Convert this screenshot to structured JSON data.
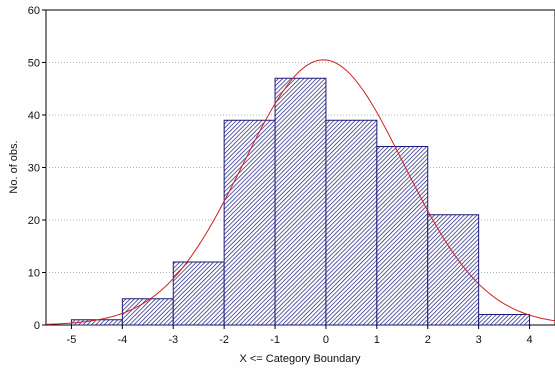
{
  "chart_data": {
    "type": "bar",
    "title": "",
    "xlabel": "X <= Category Boundary",
    "ylabel": "No. of obs.",
    "xlim": [
      -5.5,
      4.5
    ],
    "ylim": [
      0,
      60
    ],
    "x_ticks": [
      -5,
      -4,
      -3,
      -2,
      -1,
      0,
      1,
      2,
      3,
      4
    ],
    "y_ticks": [
      0,
      10,
      20,
      30,
      40,
      50,
      60
    ],
    "bins": [
      {
        "from": -5,
        "to": -4,
        "value": 1
      },
      {
        "from": -4,
        "to": -3,
        "value": 5
      },
      {
        "from": -3,
        "to": -2,
        "value": 12
      },
      {
        "from": -2,
        "to": -1,
        "value": 39
      },
      {
        "from": -1,
        "to": 0,
        "value": 47
      },
      {
        "from": 0,
        "to": 1,
        "value": 39
      },
      {
        "from": 1,
        "to": 2,
        "value": 34
      },
      {
        "from": 2,
        "to": 3,
        "value": 21
      },
      {
        "from": 3,
        "to": 4,
        "value": 2
      }
    ],
    "fitted_curve": {
      "type": "normal",
      "peak_x": -0.05,
      "peak_y": 50.5,
      "sd": 1.58,
      "color": "#cc2222"
    },
    "bar_color": "#1a1a7a",
    "grid": true
  }
}
